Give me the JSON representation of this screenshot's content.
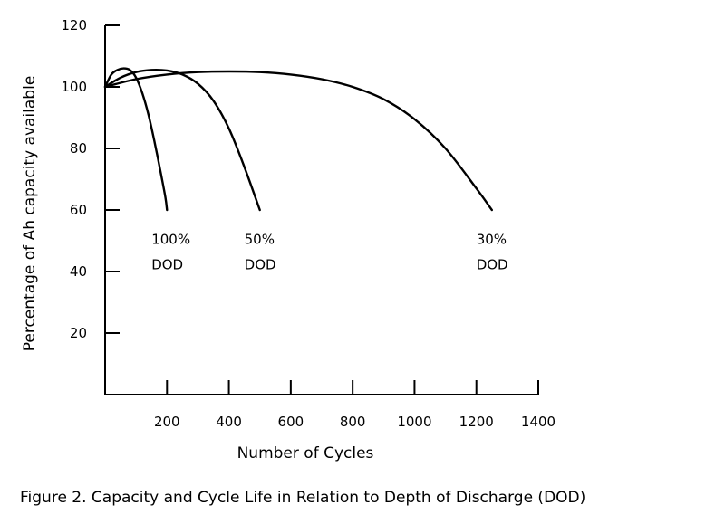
{
  "chart_data": {
    "type": "line",
    "title": "",
    "xlabel": "Number of Cycles",
    "ylabel": "Percentage of Ah capacity available",
    "xlim": [
      0,
      1400
    ],
    "ylim": [
      0,
      120
    ],
    "x_ticks": [
      200,
      400,
      600,
      800,
      1000,
      1200,
      1400
    ],
    "y_ticks": [
      20,
      40,
      60,
      80,
      100,
      120
    ],
    "grid": false,
    "legend": "none",
    "series": [
      {
        "label_line1": "100%",
        "label_line2": "DOD",
        "label_at": [
          150,
          49
        ],
        "x": [
          0,
          20,
          40,
          60,
          80,
          100,
          120,
          140,
          160,
          180,
          195,
          200
        ],
        "y": [
          100,
          104,
          105.5,
          106,
          105.5,
          103,
          98,
          91,
          82,
          72,
          64,
          60
        ]
      },
      {
        "label_line1": "50%",
        "label_line2": "DOD",
        "label_at": [
          450,
          49
        ],
        "x": [
          0,
          50,
          100,
          150,
          200,
          250,
          300,
          350,
          400,
          450,
          500
        ],
        "y": [
          100,
          103,
          104.8,
          105.5,
          105.3,
          104,
          101,
          95.5,
          86.5,
          74,
          60
        ]
      },
      {
        "label_line1": "30%",
        "label_line2": "DOD",
        "label_at": [
          1200,
          49
        ],
        "x": [
          0,
          100,
          200,
          300,
          400,
          500,
          600,
          700,
          800,
          900,
          1000,
          1100,
          1200,
          1250
        ],
        "y": [
          100,
          102.5,
          104,
          104.8,
          105,
          104.8,
          104,
          102.5,
          100,
          96,
          89.5,
          80,
          67,
          60
        ]
      }
    ]
  },
  "caption": "Figure 2. Capacity and Cycle Life in Relation to Depth of Discharge (DOD)"
}
